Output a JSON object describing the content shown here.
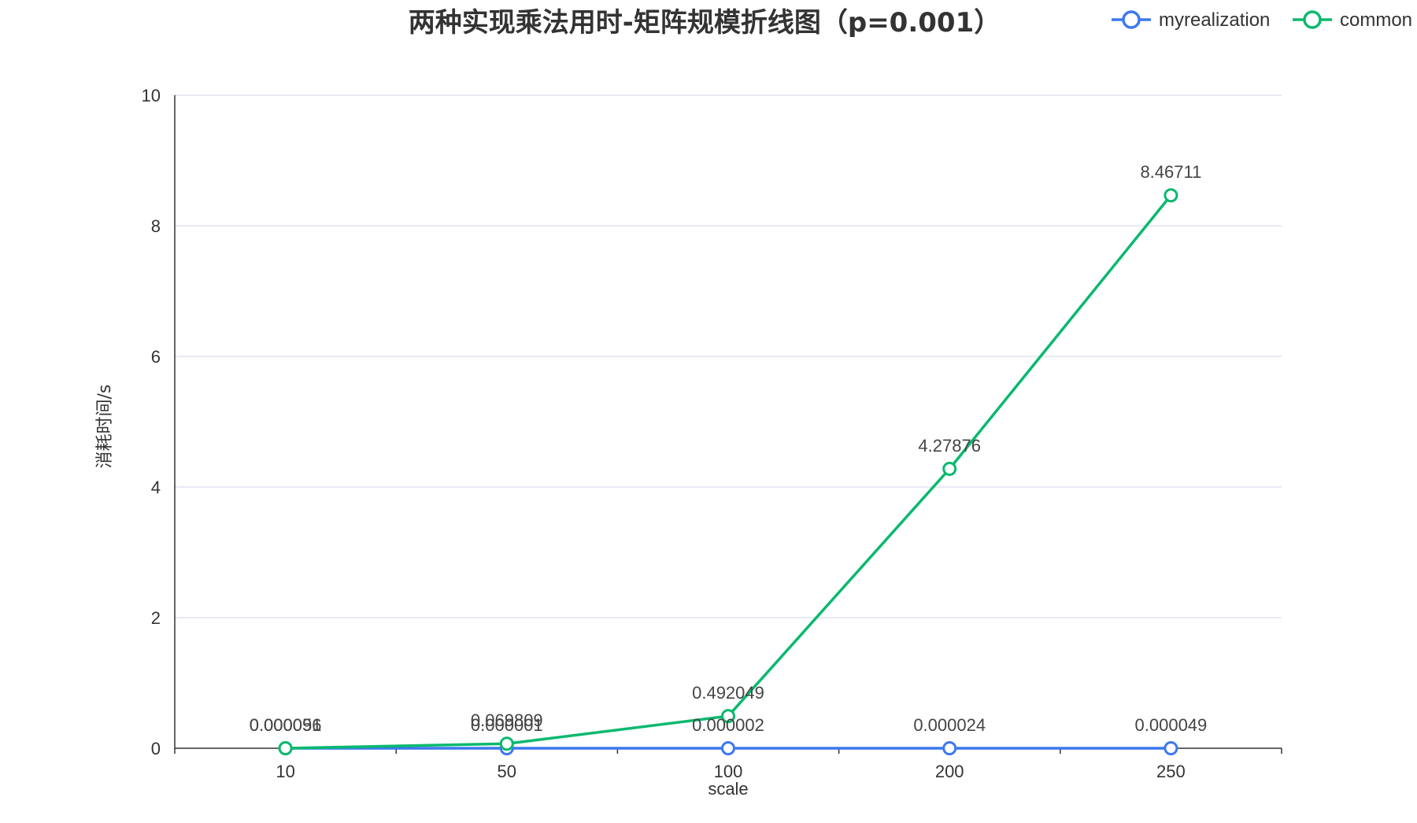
{
  "chart_data": {
    "type": "line",
    "title": "两种实现乘法用时-矩阵规模折线图（p=0.001）",
    "xlabel": "scale",
    "ylabel": "消耗时间/s",
    "categories": [
      "10",
      "50",
      "100",
      "200",
      "250"
    ],
    "ylim": [
      0,
      10
    ],
    "yticks": [
      0,
      2,
      4,
      6,
      8,
      10
    ],
    "grid": true,
    "legend_position": "top-right",
    "series": [
      {
        "name": "myrealization",
        "color": "#3c78f0",
        "values": [
          5.6e-05,
          1e-06,
          2e-06,
          2.4e-05,
          4.9e-05
        ],
        "labels": [
          "0.000056",
          "0.000001",
          "0.000002",
          "0.000024",
          "0.000049"
        ]
      },
      {
        "name": "common",
        "color": "#0ab96e",
        "values": [
          9.1e-05,
          0.069809,
          0.492049,
          4.27876,
          8.46711
        ],
        "labels": [
          "0.000091",
          "0.069809",
          "0.492049",
          "4.27876",
          "8.46711"
        ]
      }
    ]
  }
}
